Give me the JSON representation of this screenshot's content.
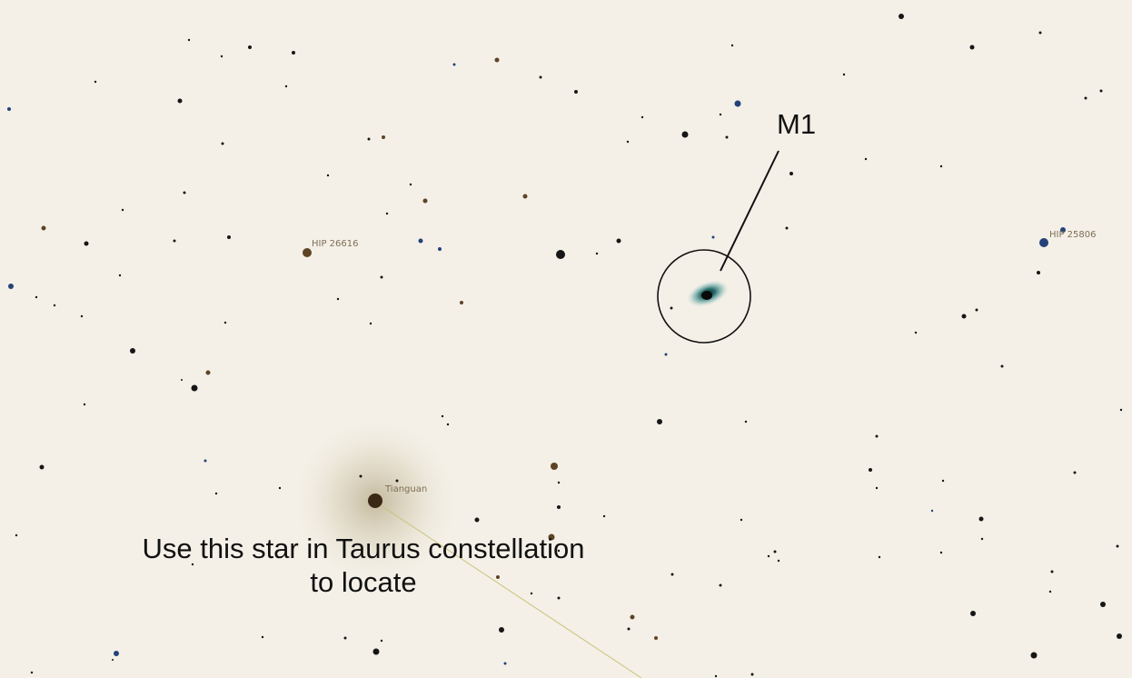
{
  "labels": [
    "M1",
    "HIP 26616",
    "HIP 25806",
    "Tianguan"
  ],
  "annotation": {
    "lines": [
      "Use this star in Taurus constellation",
      "to locate"
    ]
  }
}
